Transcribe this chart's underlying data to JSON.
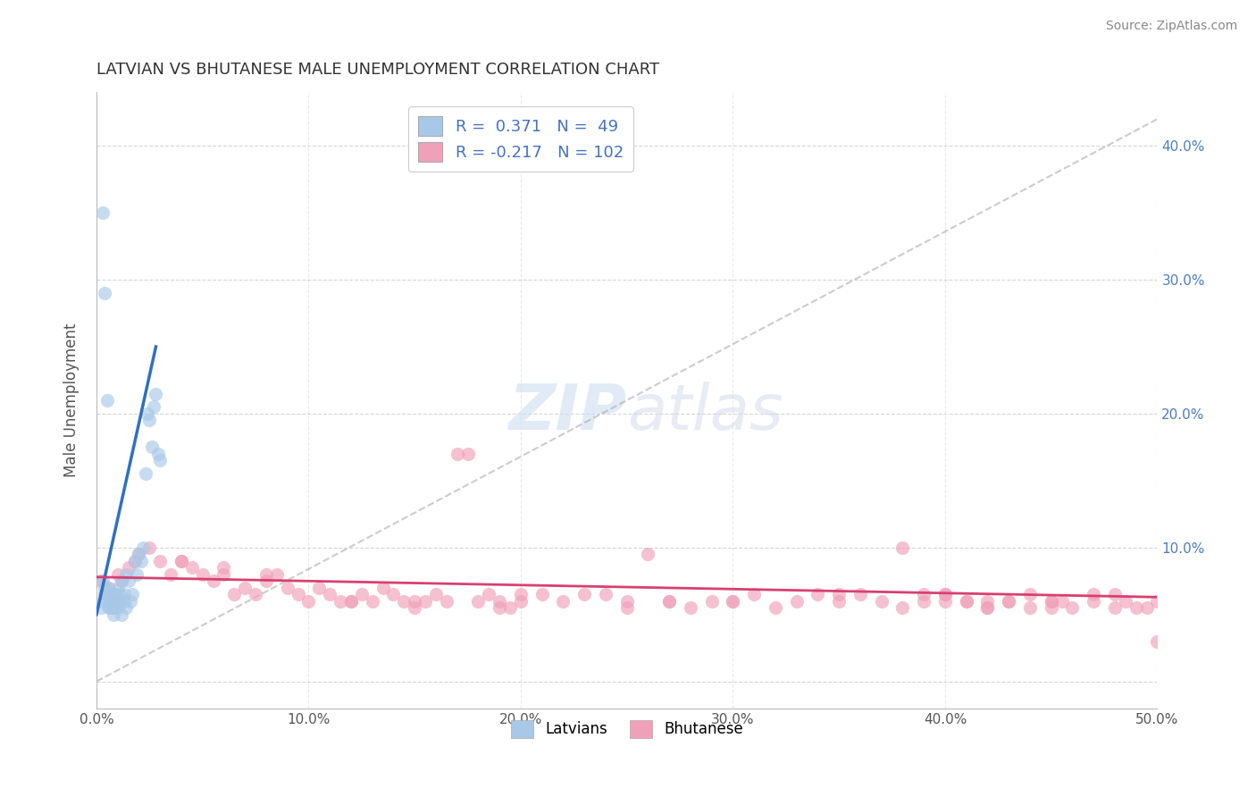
{
  "title": "LATVIAN VS BHUTANESE MALE UNEMPLOYMENT CORRELATION CHART",
  "source": "Source: ZipAtlas.com",
  "ylabel": "Male Unemployment",
  "xlim": [
    0.0,
    0.5
  ],
  "ylim": [
    -0.02,
    0.44
  ],
  "xticks": [
    0.0,
    0.1,
    0.2,
    0.3,
    0.4,
    0.5
  ],
  "xticklabels": [
    "0.0%",
    "10.0%",
    "20.0%",
    "30.0%",
    "40.0%",
    "50.0%"
  ],
  "yticks": [
    0.0,
    0.1,
    0.2,
    0.3,
    0.4
  ],
  "yticklabels_right": [
    "",
    "10.0%",
    "20.0%",
    "30.0%",
    "40.0%"
  ],
  "latvian_R": 0.371,
  "latvian_N": 49,
  "bhutanese_R": -0.217,
  "bhutanese_N": 102,
  "latvian_color": "#a8c8e8",
  "latvian_line_color": "#3070c0",
  "bhutanese_color": "#f0a0b8",
  "bhutanese_line_color": "#d84070",
  "legend_label_latvians": "Latvians",
  "legend_label_bhutanese": "Bhutanese",
  "scatter_alpha": 0.65,
  "scatter_size": 120,
  "background_color": "#ffffff",
  "grid_color": "#cccccc",
  "latvian_points_x": [
    0.002,
    0.003,
    0.004,
    0.005,
    0.006,
    0.007,
    0.008,
    0.009,
    0.01,
    0.011,
    0.012,
    0.013,
    0.014,
    0.015,
    0.016,
    0.017,
    0.018,
    0.019,
    0.02,
    0.021,
    0.022,
    0.023,
    0.024,
    0.025,
    0.026,
    0.027,
    0.028,
    0.029,
    0.03,
    0.003,
    0.004,
    0.005,
    0.006,
    0.007,
    0.008,
    0.009,
    0.01,
    0.011,
    0.012,
    0.013,
    0.014,
    0.003,
    0.004,
    0.005,
    0.006,
    0.007,
    0.008,
    0.009,
    0.01
  ],
  "latvian_points_y": [
    0.055,
    0.06,
    0.065,
    0.07,
    0.06,
    0.055,
    0.065,
    0.06,
    0.07,
    0.065,
    0.075,
    0.065,
    0.08,
    0.075,
    0.06,
    0.065,
    0.09,
    0.08,
    0.095,
    0.09,
    0.1,
    0.155,
    0.2,
    0.195,
    0.175,
    0.205,
    0.215,
    0.17,
    0.165,
    0.35,
    0.29,
    0.21,
    0.055,
    0.06,
    0.05,
    0.065,
    0.055,
    0.06,
    0.05,
    0.06,
    0.055,
    0.075,
    0.07,
    0.065,
    0.055,
    0.06,
    0.055,
    0.065,
    0.06
  ],
  "bhutanese_points_x": [
    0.002,
    0.004,
    0.006,
    0.008,
    0.01,
    0.012,
    0.015,
    0.018,
    0.02,
    0.025,
    0.03,
    0.035,
    0.04,
    0.045,
    0.05,
    0.055,
    0.06,
    0.065,
    0.07,
    0.075,
    0.08,
    0.085,
    0.09,
    0.095,
    0.1,
    0.105,
    0.11,
    0.115,
    0.12,
    0.125,
    0.13,
    0.135,
    0.14,
    0.145,
    0.15,
    0.155,
    0.16,
    0.165,
    0.17,
    0.175,
    0.18,
    0.185,
    0.19,
    0.195,
    0.2,
    0.21,
    0.22,
    0.23,
    0.24,
    0.25,
    0.26,
    0.27,
    0.28,
    0.29,
    0.3,
    0.31,
    0.32,
    0.33,
    0.34,
    0.35,
    0.36,
    0.37,
    0.38,
    0.39,
    0.4,
    0.41,
    0.42,
    0.43,
    0.44,
    0.45,
    0.46,
    0.47,
    0.48,
    0.49,
    0.5,
    0.19,
    0.27,
    0.38,
    0.42,
    0.45,
    0.48,
    0.39,
    0.4,
    0.41,
    0.42,
    0.43,
    0.44,
    0.455,
    0.47,
    0.485,
    0.495,
    0.12,
    0.15,
    0.2,
    0.25,
    0.3,
    0.35,
    0.4,
    0.45,
    0.5,
    0.04,
    0.06,
    0.08
  ],
  "bhutanese_points_y": [
    0.075,
    0.065,
    0.07,
    0.06,
    0.08,
    0.075,
    0.085,
    0.09,
    0.095,
    0.1,
    0.09,
    0.08,
    0.09,
    0.085,
    0.08,
    0.075,
    0.08,
    0.065,
    0.07,
    0.065,
    0.075,
    0.08,
    0.07,
    0.065,
    0.06,
    0.07,
    0.065,
    0.06,
    0.06,
    0.065,
    0.06,
    0.07,
    0.065,
    0.06,
    0.055,
    0.06,
    0.065,
    0.06,
    0.17,
    0.17,
    0.06,
    0.065,
    0.06,
    0.055,
    0.06,
    0.065,
    0.06,
    0.065,
    0.065,
    0.055,
    0.095,
    0.06,
    0.055,
    0.06,
    0.06,
    0.065,
    0.055,
    0.06,
    0.065,
    0.06,
    0.065,
    0.06,
    0.055,
    0.06,
    0.065,
    0.06,
    0.055,
    0.06,
    0.065,
    0.06,
    0.055,
    0.06,
    0.065,
    0.055,
    0.03,
    0.055,
    0.06,
    0.1,
    0.06,
    0.06,
    0.055,
    0.065,
    0.065,
    0.06,
    0.055,
    0.06,
    0.055,
    0.06,
    0.065,
    0.06,
    0.055,
    0.06,
    0.06,
    0.065,
    0.06,
    0.06,
    0.065,
    0.06,
    0.055,
    0.06,
    0.09,
    0.085,
    0.08
  ]
}
